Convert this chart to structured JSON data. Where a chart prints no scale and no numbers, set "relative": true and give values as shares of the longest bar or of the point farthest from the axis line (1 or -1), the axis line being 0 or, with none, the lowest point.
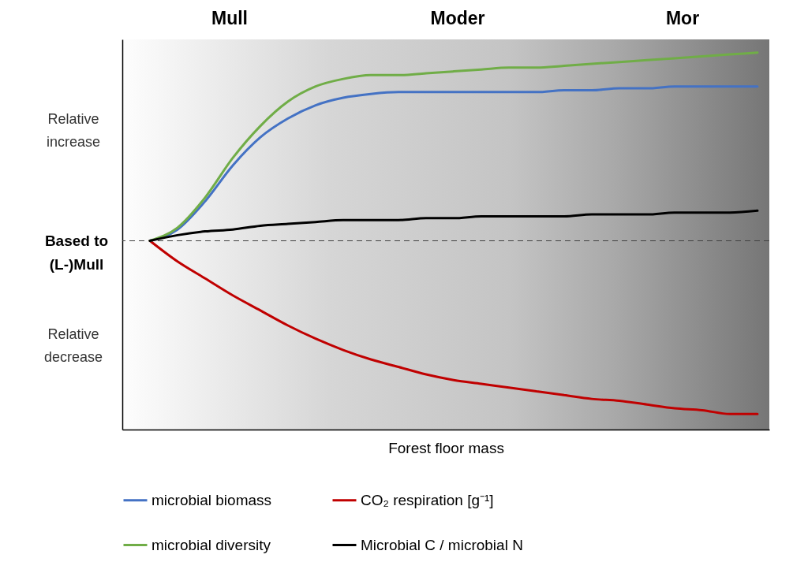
{
  "chart_data": {
    "type": "line",
    "relative": true,
    "xlabel": "Forest floor mass",
    "legend": "bottom",
    "grid": false,
    "line_style": "solid",
    "categories": [
      null,
      null,
      null,
      null,
      null,
      null,
      null,
      null,
      null,
      null,
      null,
      null,
      null,
      null,
      null,
      null,
      null,
      null,
      null,
      null,
      null,
      null,
      null
    ],
    "series": [
      {
        "name": "microbial biomass",
        "color": "#4472c4",
        "values": [
          0,
          0.06,
          0.21,
          0.4,
          0.55,
          0.65,
          0.72,
          0.76,
          0.78,
          0.79,
          0.79,
          0.79,
          0.79,
          0.79,
          0.79,
          0.8,
          0.8,
          0.81,
          0.81,
          0.82,
          0.82,
          0.82,
          0.82
        ]
      },
      {
        "name": "CO₂ respiration [g⁻¹]",
        "color": "#c00000",
        "values": [
          0,
          -0.11,
          -0.2,
          -0.29,
          -0.37,
          -0.45,
          -0.52,
          -0.58,
          -0.63,
          -0.67,
          -0.71,
          -0.74,
          -0.76,
          -0.78,
          -0.8,
          -0.82,
          -0.84,
          -0.85,
          -0.87,
          -0.89,
          -0.9,
          -0.92,
          -0.92
        ]
      },
      {
        "name": "microbial diversity",
        "color": "#70ad47",
        "values": [
          0,
          0.07,
          0.23,
          0.44,
          0.61,
          0.74,
          0.82,
          0.86,
          0.88,
          0.88,
          0.89,
          0.9,
          0.91,
          0.92,
          0.92,
          0.93,
          0.94,
          0.95,
          0.96,
          0.97,
          0.98,
          0.99,
          1
        ]
      },
      {
        "name": "Microbial C / microbial N",
        "color": "#000000",
        "values": [
          0,
          0.03,
          0.05,
          0.06,
          0.08,
          0.09,
          0.1,
          0.11,
          0.11,
          0.11,
          0.12,
          0.12,
          0.13,
          0.13,
          0.13,
          0.13,
          0.14,
          0.14,
          0.14,
          0.15,
          0.15,
          0.15,
          0.16
        ]
      }
    ],
    "ref_lines": [
      {
        "axis": "y",
        "value": 0,
        "label": "Based to (L-)Mull",
        "color": "#404040",
        "line_style": "dashed"
      }
    ],
    "annotations": [
      "Mull",
      "Moder",
      "Mor",
      "Relative increase",
      "Relative decrease"
    ]
  }
}
